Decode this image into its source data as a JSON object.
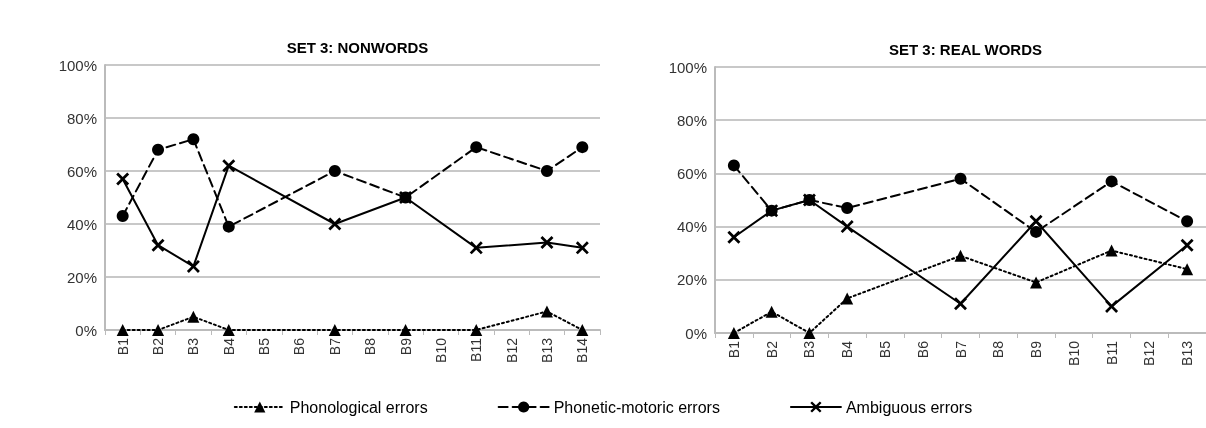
{
  "chart_data": [
    {
      "type": "line",
      "title": "SET 3: NONWORDS",
      "categories": [
        "B1",
        "B2",
        "B3",
        "B4",
        "B5",
        "B6",
        "B7",
        "B8",
        "B9",
        "B10",
        "B11",
        "B12",
        "B13",
        "B14"
      ],
      "series": [
        {
          "name": "Phonological errors",
          "color": "#000000",
          "marker": "triangle",
          "line_style": "dotted",
          "values": [
            0,
            0,
            5,
            0,
            null,
            null,
            0,
            null,
            0,
            null,
            0,
            null,
            7,
            0
          ]
        },
        {
          "name": "Phonetic-motoric errors",
          "color": "#000000",
          "marker": "circle",
          "line_style": "dashed",
          "values": [
            43,
            68,
            72,
            39,
            null,
            null,
            60,
            null,
            50,
            null,
            69,
            null,
            60,
            69
          ]
        },
        {
          "name": "Ambiguous errors",
          "color": "#000000",
          "marker": "cross",
          "line_style": "solid",
          "values": [
            57,
            32,
            24,
            62,
            null,
            null,
            40,
            null,
            50,
            null,
            31,
            null,
            33,
            31
          ]
        }
      ],
      "ylim": [
        0,
        100
      ],
      "yticks": [
        {
          "value": 0,
          "label": "0%"
        },
        {
          "value": 20,
          "label": "20%"
        },
        {
          "value": 40,
          "label": "40%"
        },
        {
          "value": 60,
          "label": "60%"
        },
        {
          "value": 80,
          "label": "80%"
        },
        {
          "value": 100,
          "label": "100%"
        }
      ],
      "grid": "y",
      "legend": "bottom"
    },
    {
      "type": "line",
      "title": "SET 3: REAL WORDS",
      "categories": [
        "B1",
        "B2",
        "B3",
        "B4",
        "B5",
        "B6",
        "B7",
        "B8",
        "B9",
        "B10",
        "B11",
        "B12",
        "B13"
      ],
      "series": [
        {
          "color": "#000000",
          "marker": "triangle",
          "line_style": "dotted",
          "values": [
            0,
            8,
            0,
            13,
            null,
            null,
            29,
            null,
            19,
            null,
            31,
            null,
            24
          ]
        },
        {
          "color": "#000000",
          "marker": "circle",
          "line_style": "dashed",
          "values": [
            63,
            46,
            50,
            47,
            null,
            null,
            58,
            null,
            38,
            null,
            57,
            null,
            42
          ]
        },
        {
          "color": "#000000",
          "marker": "cross",
          "line_style": "solid",
          "values": [
            36,
            46,
            50,
            40,
            null,
            null,
            11,
            null,
            42,
            null,
            10,
            null,
            33
          ]
        }
      ],
      "ylim": [
        0,
        100
      ],
      "yticks": [
        {
          "value": 0,
          "label": "0%"
        },
        {
          "value": 20,
          "label": "20%"
        },
        {
          "value": 40,
          "label": "40%"
        },
        {
          "value": 60,
          "label": "60%"
        },
        {
          "value": 80,
          "label": "80%"
        },
        {
          "value": 100,
          "label": "100%"
        }
      ],
      "grid": "y"
    }
  ]
}
